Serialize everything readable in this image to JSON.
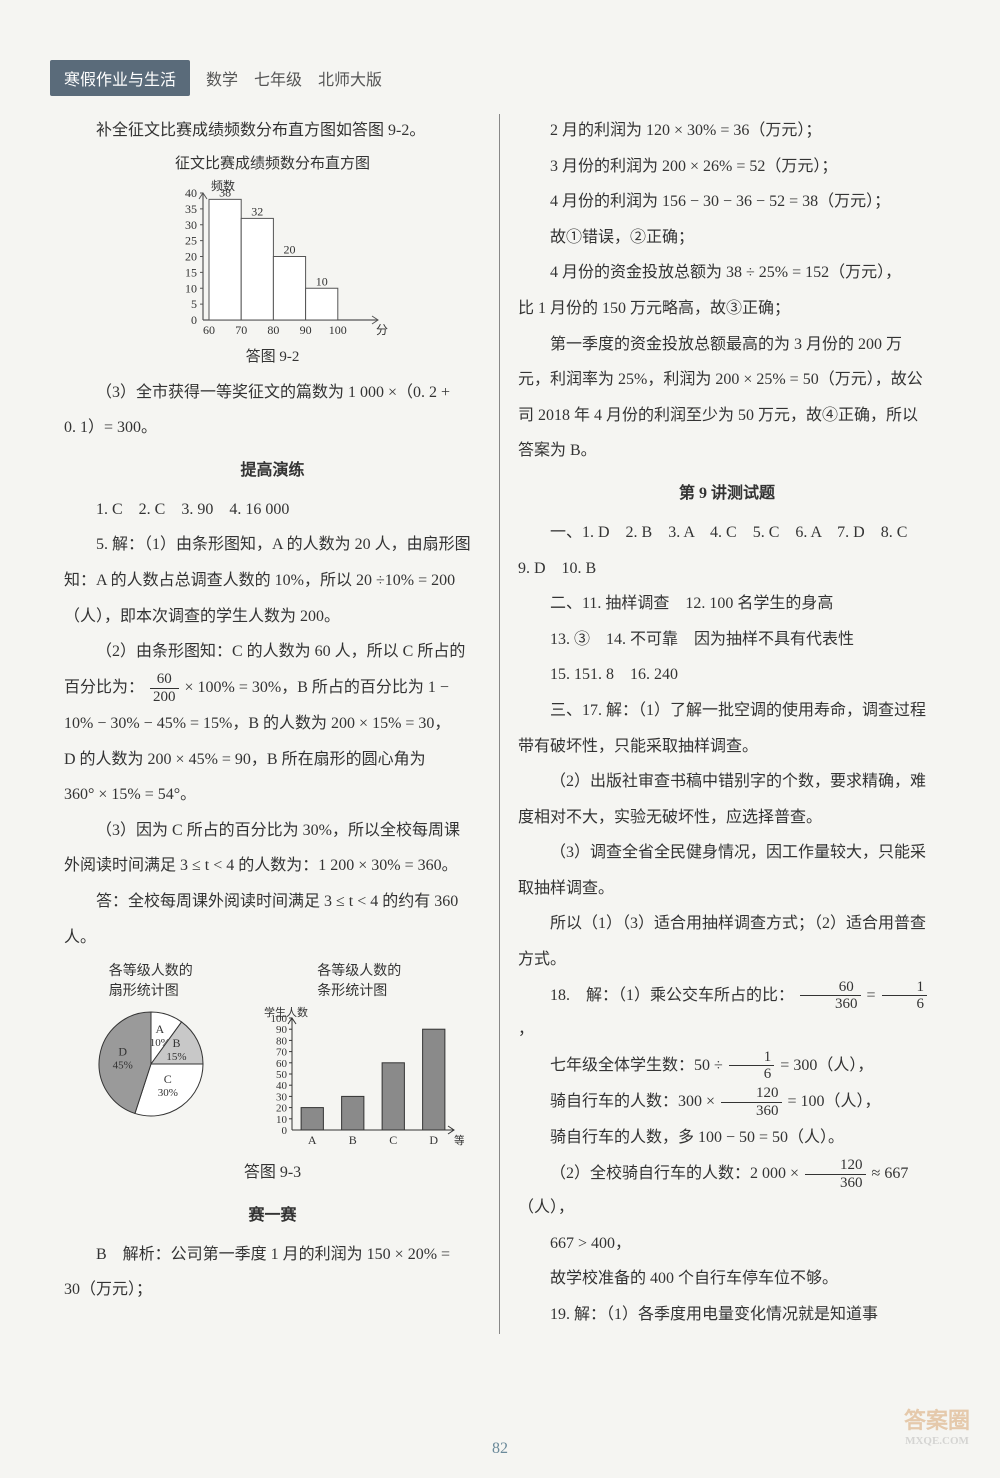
{
  "header": {
    "badge": "寒假作业与生活",
    "sub": "数学　七年级　北师大版"
  },
  "left": {
    "intro": "补全征文比赛成绩频数分布直方图如答图 9-2。",
    "histogram": {
      "title": "征文比赛成绩频数分布直方图",
      "ylabel": "频数",
      "xlabel": "分数",
      "categories": [
        "60",
        "70",
        "80",
        "90",
        "100"
      ],
      "values": [
        38,
        32,
        20,
        10
      ],
      "value_labels": [
        "38",
        "32",
        "20",
        "10"
      ],
      "ylim": [
        0,
        40
      ],
      "ytick_step": 5,
      "bar_color": "#ffffff",
      "bar_stroke": "#555555",
      "axis_color": "#555555",
      "label_fontsize": 12,
      "caption": "答图 9-2"
    },
    "p3a": "（3）全市获得一等奖征文的篇数为 1 000 ×（0. 2 +",
    "p3b": "0. 1）= 300。",
    "sec_tigao": "提高演练",
    "tigao_line": "1. C　2. C　3. 90　4. 16 000",
    "p5a": "5. 解：（1）由条形图知，A 的人数为 20 人，由扇形图",
    "p5b": "知：A 的人数占总调查人数的 10%，所以 20 ÷10% = 200",
    "p5c": "（人），即本次调查的学生人数为 200。",
    "p6a": "（2）由条形图知：C 的人数为 60 人，所以 C 所占的",
    "p6b_pre": "百分比为：",
    "p6b_frac_num": "60",
    "p6b_frac_den": "200",
    "p6b_post": " × 100% = 30%，B 所占的百分比为 1 −",
    "p6c": "10% − 30% − 45% = 15%，B 的人数为 200 × 15% = 30，",
    "p6d": "D 的人数为 200 × 45% = 90，B 所在扇形的圆心角为",
    "p6e": "360° × 15% = 54°。",
    "p7a": "（3）因为 C 所占的百分比为 30%，所以全校每周课",
    "p7b": "外阅读时间满足 3 ≤ t < 4 的人数为：1 200 × 30% = 360。",
    "p7c": "答：全校每周课外阅读时间满足 3 ≤ t < 4 的约有 360",
    "p7d": "人。",
    "pie": {
      "title": "各等级人数的\n扇形统计图",
      "slices": [
        {
          "label": "A",
          "pct": "10%",
          "angle_start": -90,
          "angle_end": -54,
          "fill": "#ffffff"
        },
        {
          "label": "B",
          "pct": "15%",
          "angle_start": -54,
          "angle_end": 0,
          "fill": "#c8c8c8"
        },
        {
          "label": "C",
          "pct": "30%",
          "angle_start": 0,
          "angle_end": 108,
          "fill": "#ffffff"
        },
        {
          "label": "D",
          "pct": "45%",
          "angle_start": 108,
          "angle_end": 270,
          "fill": "#9a9a9a"
        }
      ],
      "stroke": "#333333",
      "radius": 52
    },
    "bar": {
      "title": "各等级人数的\n条形统计图",
      "ylabel": "学生人数",
      "xlabel": "等级",
      "categories": [
        "A",
        "B",
        "C",
        "D"
      ],
      "values": [
        20,
        30,
        60,
        90
      ],
      "ylim": [
        0,
        100
      ],
      "ytick_step": 10,
      "bar_fill": "#8a8a8a",
      "bar_stroke": "#333333",
      "axis_color": "#333333",
      "caption": "答图 9-3"
    },
    "sec_sai": "赛一赛",
    "sai_a": "B　解析：公司第一季度 1 月的利润为 150 × 20% =",
    "sai_b": "30（万元）；"
  },
  "right": {
    "r1": "2 月的利润为 120 × 30% = 36（万元）；",
    "r2": "3 月份的利润为 200 × 26% = 52（万元）；",
    "r3": "4 月份的利润为 156 − 30 − 36 − 52 = 38（万元）；",
    "r4": "故①错误，②正确；",
    "r5": "4 月份的资金投放总额为 38 ÷ 25% = 152（万元），",
    "r6": "比 1 月份的 150 万元略高，故③正确；",
    "r7": "第一季度的资金投放总额最高的为 3 月份的 200 万",
    "r8": "元，利润率为 25%，利润为 200 × 25% = 50（万元），故公",
    "r9": "司 2018 年 4 月份的利润至少为 50 万元，故④正确，所以",
    "r10": "答案为 B。",
    "sec_test": "第 9 讲测试题",
    "t1": "一、1. D　2. B　3. A　4. C　5. C　6. A　7. D　8. C",
    "t2": "9. D　10. B",
    "t3": "二、11. 抽样调查　12. 100 名学生的身高",
    "t4": "13. ③　14. 不可靠　因为抽样不具有代表性",
    "t5": "15. 151. 8　16. 240",
    "t6": "三、17. 解：（1）了解一批空调的使用寿命，调查过程",
    "t7": "带有破坏性，只能采取抽样调查。",
    "t8": "（2）出版社审查书稿中错别字的个数，要求精确，难",
    "t9": "度相对不大，实验无破坏性，应选择普查。",
    "t10": "（3）调查全省全民健身情况，因工作量较大，只能采",
    "t11": "取抽样调查。",
    "t12": "所以（1）（3）适合用抽样调查方式；（2）适合用普查",
    "t13": "方式。",
    "q18a_pre": "18.　解：（1）乘公交车所占的比：",
    "q18a_n1": "60",
    "q18a_d1": "360",
    "q18a_mid": " = ",
    "q18a_n2": "1",
    "q18a_d2": "6",
    "q18a_post": "，",
    "q18b_pre": "七年级全体学生数：50 ÷ ",
    "q18b_n": "1",
    "q18b_d": "6",
    "q18b_post": " = 300（人），",
    "q18c_pre": "骑自行车的人数：300 × ",
    "q18c_n": "120",
    "q18c_d": "360",
    "q18c_post": " = 100（人），",
    "q18d": "骑自行车的人数，多 100 − 50 = 50（人）。",
    "q18e_pre": "（2）全校骑自行车的人数：2 000 × ",
    "q18e_n": "120",
    "q18e_d": "360",
    "q18e_post": " ≈ 667（人），",
    "q18f": "667 > 400，",
    "q18g": "故学校准备的 400 个自行车停车位不够。",
    "q19": "19. 解：（1）各季度用电量变化情况就是知道事"
  },
  "page_num": "82",
  "watermark": {
    "big": "答案圈",
    "small": "MXQE.COM"
  }
}
